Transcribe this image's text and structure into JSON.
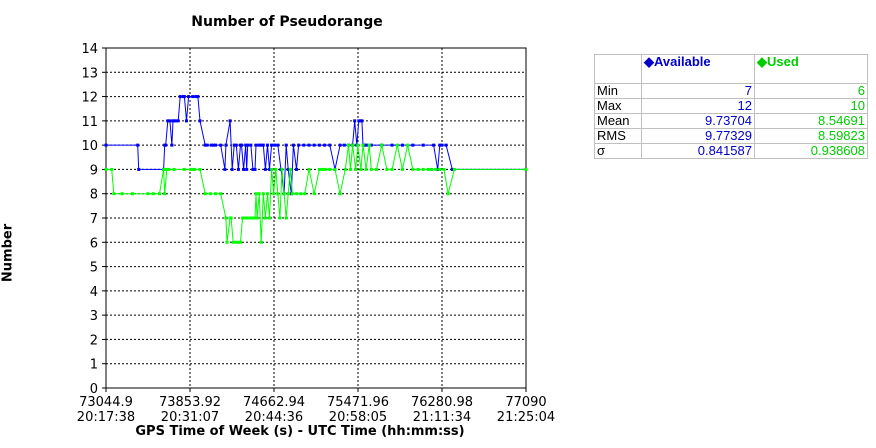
{
  "chart_data": {
    "type": "line",
    "title": "Number of Pseudorange",
    "xlabel": "GPS Time of Week (s) - UTC Time (hh:mm:ss)",
    "ylabel": "Number",
    "xlim": [
      73044.9,
      77090
    ],
    "ylim": [
      0,
      14
    ],
    "grid": true,
    "y_ticks": [
      "0",
      "1",
      "2",
      "3",
      "4",
      "5",
      "6",
      "7",
      "8",
      "9",
      "10",
      "11",
      "12",
      "13",
      "14"
    ],
    "x_ticks": [
      {
        "tow": "73044.9",
        "utc": "20:17:38"
      },
      {
        "tow": "73853.92",
        "utc": "20:31:07"
      },
      {
        "tow": "74662.94",
        "utc": "20:44:36"
      },
      {
        "tow": "75471.96",
        "utc": "20:58:05"
      },
      {
        "tow": "76280.98",
        "utc": "21:11:34"
      },
      {
        "tow": "77090",
        "utc": "21:25:04"
      }
    ],
    "series": [
      {
        "name": "Available",
        "color": "#0000ff",
        "x": [
          73044.9,
          73350,
          73360,
          73600,
          73610,
          73620,
          73640,
          73660,
          73680,
          73690,
          73700,
          73720,
          73740,
          73760,
          73790,
          73800,
          73820,
          73840,
          73880,
          73910,
          73930,
          73950,
          74000,
          74020,
          74060,
          74080,
          74100,
          74150,
          74190,
          74200,
          74240,
          74260,
          74280,
          74300,
          74320,
          74340,
          74350,
          74370,
          74390,
          74400,
          74410,
          74440,
          74460,
          74480,
          74490,
          74520,
          74540,
          74560,
          74580,
          74600,
          74620,
          74640,
          74670,
          74700,
          74730,
          74760,
          74780,
          74800,
          74830,
          74850,
          74880,
          74900,
          74950,
          75000,
          75050,
          75100,
          75150,
          75200,
          75250,
          75300,
          75340,
          75380,
          75420,
          75440,
          75460,
          75480,
          75500,
          75510,
          75520,
          75530,
          75540,
          75560,
          75600,
          75700,
          75800,
          75900,
          76000,
          76100,
          76200,
          76240,
          76260,
          76280,
          76320,
          76380,
          77090
        ],
        "y": [
          10,
          10,
          9,
          9,
          10,
          10,
          11,
          11,
          10,
          11,
          11,
          11,
          11,
          12,
          12,
          12,
          11,
          12,
          12,
          12,
          12,
          11,
          10,
          10,
          10,
          10,
          10,
          10,
          9,
          10,
          11,
          9,
          10,
          10,
          9,
          10,
          10,
          9,
          10,
          9,
          10,
          10,
          9,
          9,
          10,
          10,
          10,
          10,
          9,
          10,
          9,
          10,
          10,
          10,
          9,
          8,
          10,
          9,
          8,
          10,
          9,
          10,
          10,
          10,
          10,
          10,
          10,
          10,
          9,
          10,
          10,
          10,
          10,
          11,
          10,
          11,
          11,
          11,
          10,
          10,
          10,
          10,
          10,
          10,
          10,
          10,
          10,
          10,
          10,
          9,
          10,
          10,
          10,
          9,
          9
        ]
      },
      {
        "name": "Used",
        "color": "#00ff00",
        "x": [
          73044.9,
          73100,
          73120,
          73200,
          73300,
          73450,
          73500,
          73560,
          73600,
          73610,
          73630,
          73650,
          73700,
          73800,
          73860,
          73880,
          73900,
          73950,
          74000,
          74050,
          74100,
          74150,
          74200,
          74210,
          74240,
          74250,
          74270,
          74300,
          74320,
          74340,
          74360,
          74380,
          74400,
          74430,
          74450,
          74480,
          74490,
          74500,
          74520,
          74540,
          74560,
          74580,
          74600,
          74620,
          74640,
          74660,
          74680,
          74700,
          74720,
          74740,
          74760,
          74780,
          74800,
          74820,
          74840,
          74880,
          74920,
          74960,
          75000,
          75050,
          75100,
          75130,
          75160,
          75200,
          75250,
          75300,
          75350,
          75380,
          75400,
          75420,
          75450,
          75470,
          75500,
          75520,
          75550,
          75580,
          75600,
          75650,
          75700,
          75750,
          75800,
          75850,
          75900,
          75950,
          76000,
          76050,
          76100,
          76150,
          76180,
          76220,
          76260,
          76300,
          76340,
          76400,
          77090
        ],
        "y": [
          9,
          9,
          8,
          8,
          8,
          8,
          8,
          8,
          9,
          8,
          9,
          9,
          9,
          9,
          9,
          9,
          9,
          9,
          8,
          8,
          8,
          8,
          7,
          6,
          7,
          7,
          6,
          6,
          6,
          6,
          7,
          7,
          7,
          7,
          7,
          7,
          8,
          7,
          8,
          6,
          8,
          7,
          8,
          7,
          9,
          8,
          9,
          8,
          7,
          9,
          8,
          7,
          8,
          9,
          8,
          8,
          8,
          8,
          9,
          8,
          9,
          9,
          9,
          9,
          9,
          8,
          9,
          10,
          9,
          10,
          9,
          10,
          9,
          10,
          9,
          10,
          9,
          9,
          10,
          9,
          9,
          10,
          9,
          10,
          9,
          9,
          9,
          9,
          9,
          9,
          9,
          9,
          8,
          9,
          9
        ]
      }
    ]
  },
  "stats": {
    "headers": [
      "Available",
      "Used"
    ],
    "rows": [
      {
        "label": "Min",
        "available": "7",
        "used": "6"
      },
      {
        "label": "Max",
        "available": "12",
        "used": "10"
      },
      {
        "label": "Mean",
        "available": "9.73704",
        "used": "8.54691"
      },
      {
        "label": "RMS",
        "available": "9.77329",
        "used": "8.59823"
      },
      {
        "label": "σ",
        "available": "0.841587",
        "used": "0.938608"
      }
    ]
  }
}
